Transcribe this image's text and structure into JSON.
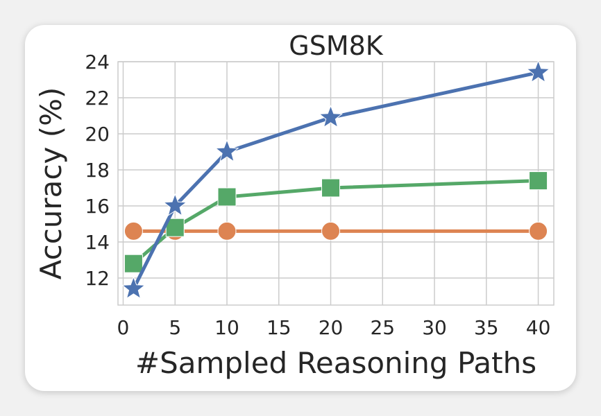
{
  "chart_data": {
    "type": "line",
    "title": "GSM8K",
    "xlabel": "#Sampled Reasoning Paths",
    "ylabel": "Accuracy (%)",
    "xlim": [
      -0.5,
      41.5
    ],
    "ylim": [
      10.5,
      24
    ],
    "xticks": [
      0,
      5,
      10,
      15,
      20,
      25,
      30,
      35,
      40
    ],
    "yticks": [
      12,
      14,
      16,
      18,
      20,
      22,
      24
    ],
    "grid": true,
    "series": [
      {
        "marker": "star",
        "color": "#4c72b0",
        "x": [
          1,
          5,
          10,
          20,
          40
        ],
        "y": [
          11.4,
          16.0,
          19.0,
          20.9,
          23.4
        ]
      },
      {
        "marker": "square",
        "color": "#55a868",
        "x": [
          1,
          5,
          10,
          20,
          40
        ],
        "y": [
          12.8,
          14.8,
          16.5,
          17.0,
          17.4
        ]
      },
      {
        "marker": "circle",
        "color": "#dd8452",
        "x": [
          1,
          5,
          10,
          20,
          40
        ],
        "y": [
          14.6,
          14.6,
          14.6,
          14.6,
          14.6
        ]
      }
    ]
  }
}
